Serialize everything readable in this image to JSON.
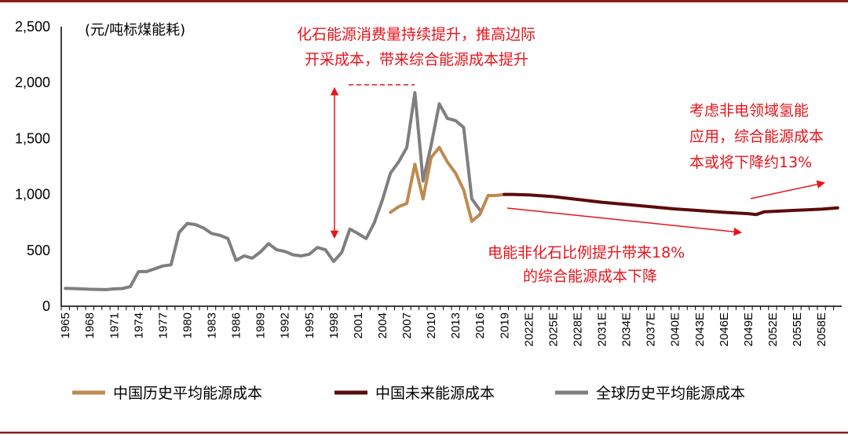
{
  "chart_data": {
    "type": "line",
    "unit_label": "(元/吨标煤能耗)",
    "ylim": [
      0,
      2500
    ],
    "y_ticks": [
      "2,500",
      "2,000",
      "1,500",
      "1,000",
      "500",
      "0"
    ],
    "y_tick_values": [
      2500,
      2000,
      1500,
      1000,
      500,
      0
    ],
    "x_start_year": 1965,
    "x_end_year": 2060,
    "x_tick_labels": [
      "1965",
      "1968",
      "1971",
      "1974",
      "1977",
      "1980",
      "1983",
      "1986",
      "1989",
      "1992",
      "1995",
      "1998",
      "2001",
      "2004",
      "2007",
      "2010",
      "2013",
      "2016",
      "2019",
      "2022E",
      "2025E",
      "2028E",
      "2031E",
      "2034E",
      "2037E",
      "2040E",
      "2043E",
      "2046E",
      "2049E",
      "2052E",
      "2055E",
      "2058E"
    ],
    "x_tick_years": [
      1965,
      1968,
      1971,
      1974,
      1977,
      1980,
      1983,
      1986,
      1989,
      1992,
      1995,
      1998,
      2001,
      2004,
      2007,
      2010,
      2013,
      2016,
      2019,
      2022,
      2025,
      2028,
      2031,
      2034,
      2037,
      2040,
      2043,
      2046,
      2049,
      2052,
      2055,
      2058
    ],
    "series": [
      {
        "name": "全球历史平均能源成本",
        "color": "#7f7f7f",
        "x": [
          1965,
          1966,
          1967,
          1968,
          1969,
          1970,
          1971,
          1972,
          1973,
          1974,
          1975,
          1976,
          1977,
          1978,
          1979,
          1980,
          1981,
          1982,
          1983,
          1984,
          1985,
          1986,
          1987,
          1988,
          1989,
          1990,
          1991,
          1992,
          1993,
          1994,
          1995,
          1996,
          1997,
          1998,
          1999,
          2000,
          2001,
          2002,
          2003,
          2004,
          2005,
          2006,
          2007,
          2008,
          2009,
          2010,
          2011,
          2012,
          2013,
          2014,
          2015,
          2016
        ],
        "values": [
          160,
          158,
          155,
          152,
          150,
          148,
          155,
          158,
          175,
          310,
          310,
          335,
          360,
          370,
          660,
          740,
          730,
          700,
          650,
          635,
          605,
          410,
          450,
          430,
          485,
          560,
          505,
          490,
          460,
          450,
          465,
          525,
          505,
          400,
          480,
          690,
          650,
          605,
          745,
          950,
          1190,
          1290,
          1420,
          1910,
          1120,
          1440,
          1810,
          1680,
          1660,
          1600,
          960,
          860
        ]
      },
      {
        "name": "中国历史平均能源成本",
        "color": "#c0894e",
        "x": [
          2005,
          2006,
          2007,
          2008,
          2009,
          2010,
          2011,
          2012,
          2013,
          2014,
          2015,
          2016,
          2017,
          2018,
          2019
        ],
        "values": [
          840,
          890,
          920,
          1270,
          960,
          1330,
          1420,
          1290,
          1190,
          1040,
          760,
          820,
          990,
          990,
          1000
        ]
      },
      {
        "name": "中国未来能源成本",
        "color": "#5c0b0b",
        "x": [
          2019,
          2020,
          2022,
          2025,
          2028,
          2031,
          2034,
          2037,
          2040,
          2043,
          2046,
          2049,
          2050,
          2051,
          2052,
          2055,
          2058,
          2060
        ],
        "values": [
          1000,
          1000,
          995,
          980,
          955,
          930,
          910,
          890,
          870,
          855,
          840,
          828,
          820,
          845,
          848,
          858,
          868,
          880
        ]
      }
    ],
    "annotations": {
      "top_line1": "化石能源消费量持续提升，推高边际",
      "top_line2": "开采成本，带来综合能源成本提升",
      "right_line1": "考虑非电领域氢能",
      "right_line2": "应用，综合能源成本",
      "right_line3": "本或将下降约13%",
      "bottom_line1": "电能非化石比例提升带来18%",
      "bottom_line2": "的综合能源成本下降"
    },
    "legend": [
      {
        "label": "中国历史平均能源成本",
        "color": "#c0894e"
      },
      {
        "label": "中国未来能源成本",
        "color": "#5c0b0b"
      },
      {
        "label": "全球历史平均能源成本",
        "color": "#7f7f7f"
      }
    ],
    "annotation_color": "#e8141b",
    "frame_color": "#8b1a1a"
  }
}
